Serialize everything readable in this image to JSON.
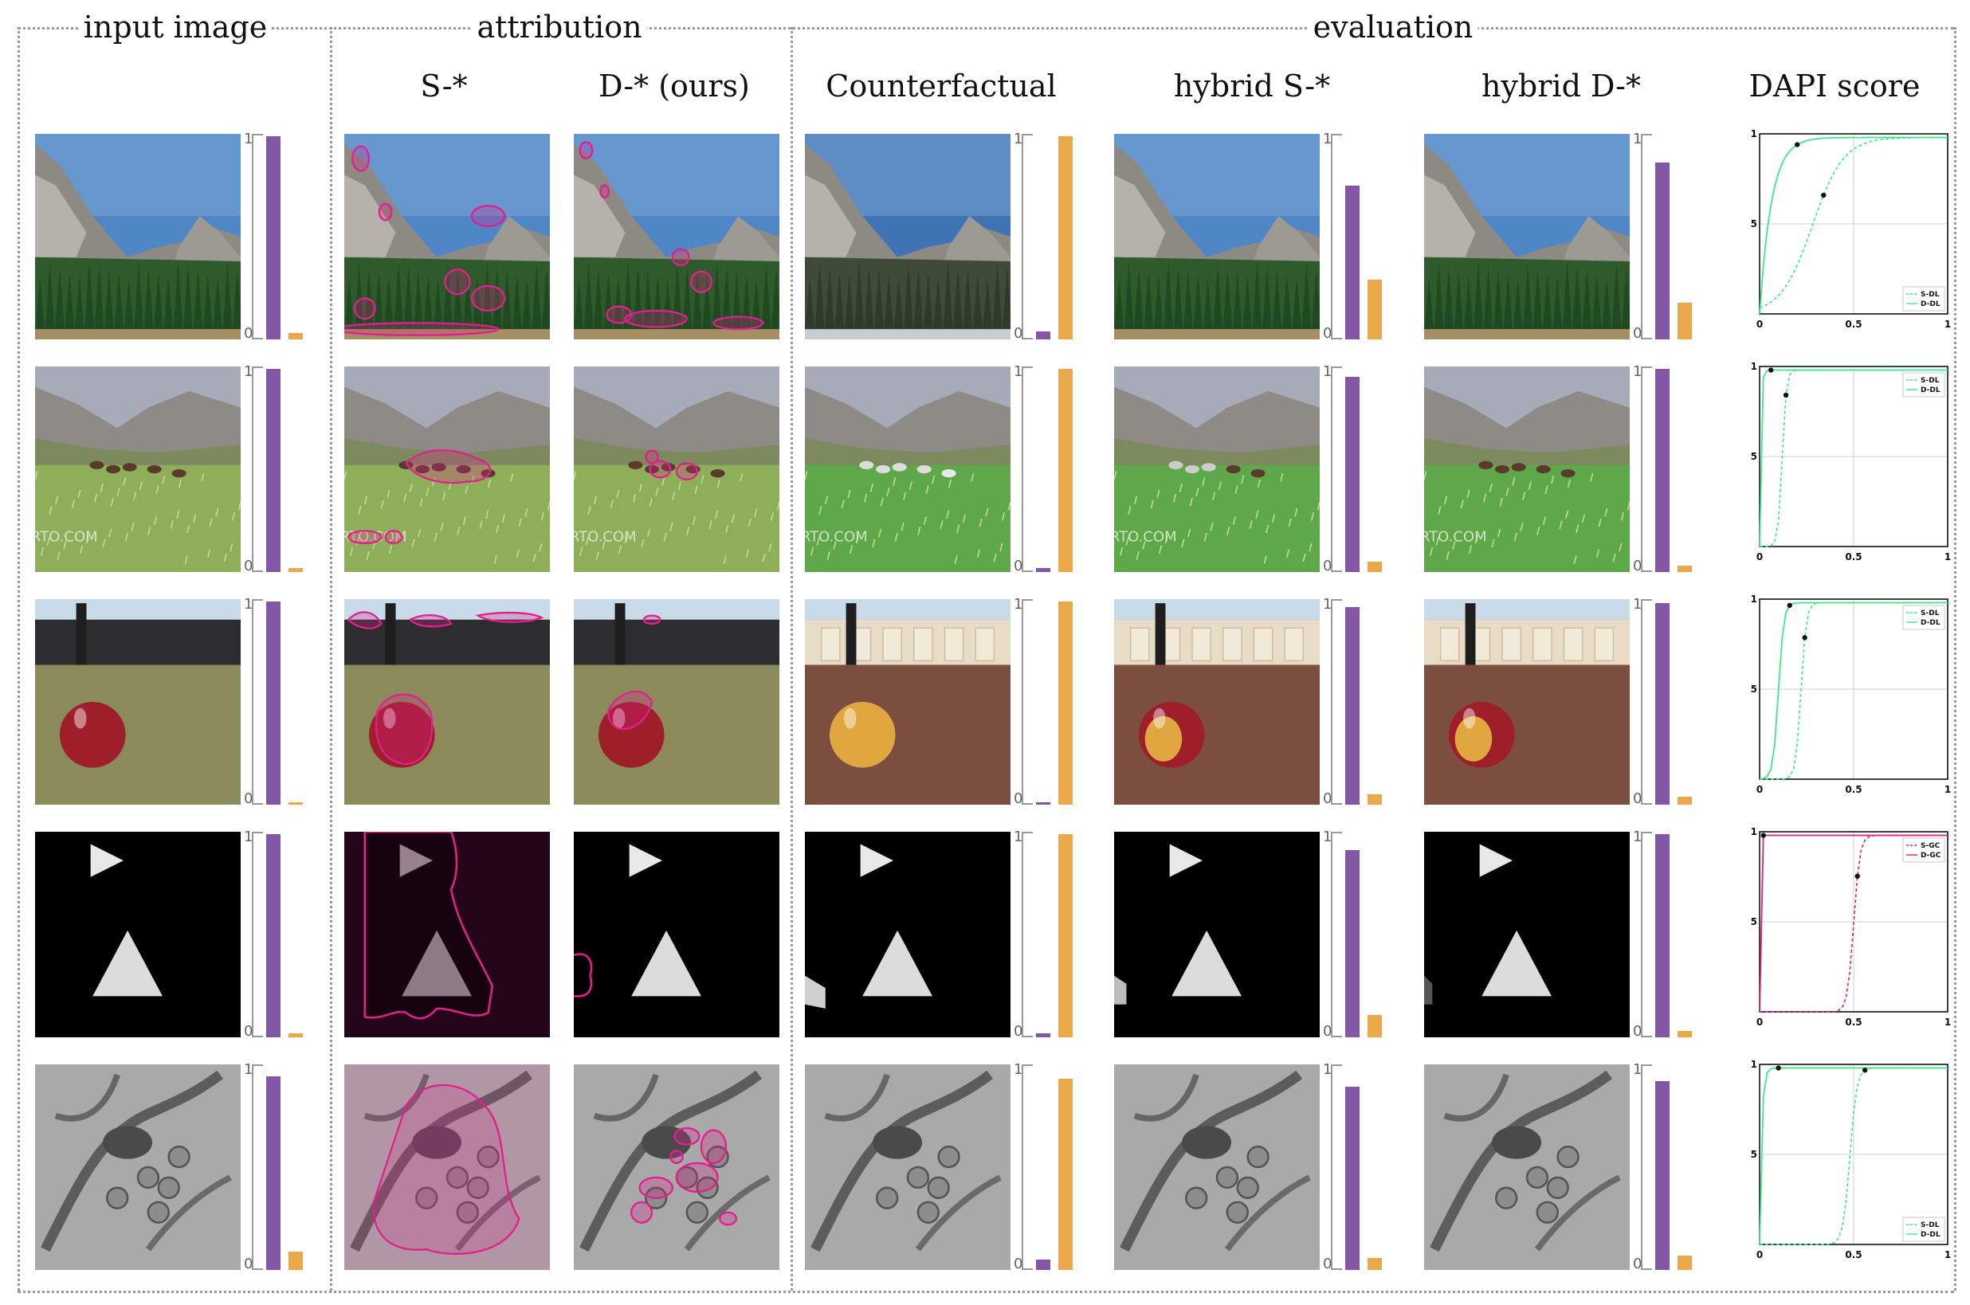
{
  "headers": {
    "input_image": "input image",
    "attribution": "attribution",
    "evaluation": "evaluation"
  },
  "subheaders": {
    "s_star": "S-*",
    "d_star": "D-* (ours)",
    "counterfactual": "Counterfactual",
    "hybrid_s": "hybrid S-*",
    "hybrid_d": "hybrid D-*",
    "dapi": "DAPI score"
  },
  "bar_axis": {
    "top": "1",
    "bottom": "0"
  },
  "colors": {
    "class_a_bar": "#8456a6",
    "class_b_bar": "#eba84b",
    "mask_outline": "#e0208c",
    "dl_curve": "#3ee88a",
    "gc_curve": "#e0206a"
  },
  "rows": [
    {
      "scene": "mountain valley",
      "bars": {
        "input": [
          0.99,
          0.03
        ],
        "counterfactual": [
          0.04,
          0.99
        ],
        "hybrid_s": [
          0.75,
          0.29
        ],
        "hybrid_d": [
          0.86,
          0.18
        ]
      },
      "dapi": {
        "methods": [
          "S-DL",
          "D-DL"
        ],
        "legend_pos": "bottom-right"
      }
    },
    {
      "scene": "horses in meadow",
      "bars": {
        "input": [
          0.99,
          0.02
        ],
        "counterfactual": [
          0.02,
          0.99
        ],
        "hybrid_s": [
          0.95,
          0.05
        ],
        "hybrid_d": [
          0.99,
          0.03
        ]
      },
      "dapi": {
        "methods": [
          "S-DL",
          "D-DL"
        ],
        "legend_pos": "top-right"
      }
    },
    {
      "scene": "apple on grass",
      "bars": {
        "input": [
          0.99,
          0.01
        ],
        "counterfactual": [
          0.01,
          0.99
        ],
        "hybrid_s": [
          0.96,
          0.05
        ],
        "hybrid_d": [
          0.98,
          0.04
        ]
      },
      "dapi": {
        "methods": [
          "S-DL",
          "D-DL"
        ],
        "legend_pos": "top-right"
      }
    },
    {
      "scene": "triangles on black",
      "bars": {
        "input": [
          0.99,
          0.02
        ],
        "counterfactual": [
          0.02,
          0.99
        ],
        "hybrid_s": [
          0.91,
          0.11
        ],
        "hybrid_d": [
          0.99,
          0.03
        ]
      },
      "dapi": {
        "methods": [
          "S-GC",
          "D-GC"
        ],
        "legend_pos": "top-right"
      }
    },
    {
      "scene": "microscopy",
      "bars": {
        "input": [
          0.94,
          0.09
        ],
        "counterfactual": [
          0.05,
          0.93
        ],
        "hybrid_s": [
          0.89,
          0.06
        ],
        "hybrid_d": [
          0.92,
          0.07
        ]
      },
      "dapi": {
        "methods": [
          "S-DL",
          "D-DL"
        ],
        "legend_pos": "bottom-right"
      }
    }
  ],
  "dapi_axis": {
    "xticks": [
      "0",
      "0.5",
      "1"
    ],
    "yticks": [
      "0.5",
      "1"
    ],
    "grid": true
  }
}
